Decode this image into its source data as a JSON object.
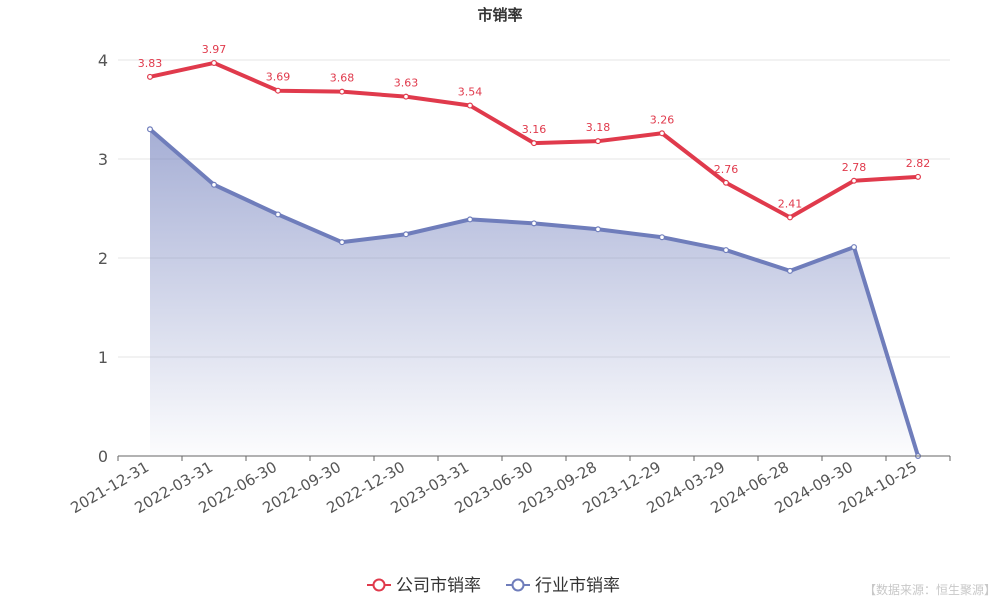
{
  "chart_data": {
    "type": "line",
    "title": "市销率",
    "categories": [
      "2021-12-31",
      "2022-03-31",
      "2022-06-30",
      "2022-09-30",
      "2022-12-30",
      "2023-03-31",
      "2023-06-30",
      "2023-09-28",
      "2023-12-29",
      "2024-03-29",
      "2024-06-28",
      "2024-09-30",
      "2024-10-25"
    ],
    "ylim": [
      0,
      4
    ],
    "yticks": [
      "0",
      "1",
      "2",
      "3",
      "4"
    ],
    "grid": true,
    "legend_position": "bottom-center",
    "series": [
      {
        "name": "公司市销率",
        "color": "#e03a4c",
        "values": [
          3.83,
          3.97,
          3.69,
          3.68,
          3.63,
          3.54,
          3.16,
          3.18,
          3.26,
          2.76,
          2.41,
          2.78,
          2.82
        ],
        "labels": [
          "3.83",
          "3.97",
          "3.69",
          "3.68",
          "3.63",
          "3.54",
          "3.16",
          "3.18",
          "3.26",
          "2.76",
          "2.41",
          "2.78",
          "2.82"
        ],
        "area": false
      },
      {
        "name": "行业市销率",
        "color": "#6f7dbb",
        "values": [
          3.3,
          2.74,
          2.44,
          2.16,
          2.24,
          2.39,
          2.35,
          2.29,
          2.21,
          2.08,
          1.87,
          2.11,
          0
        ],
        "area": true
      }
    ]
  },
  "source_note": "【数据来源：恒生聚源】"
}
